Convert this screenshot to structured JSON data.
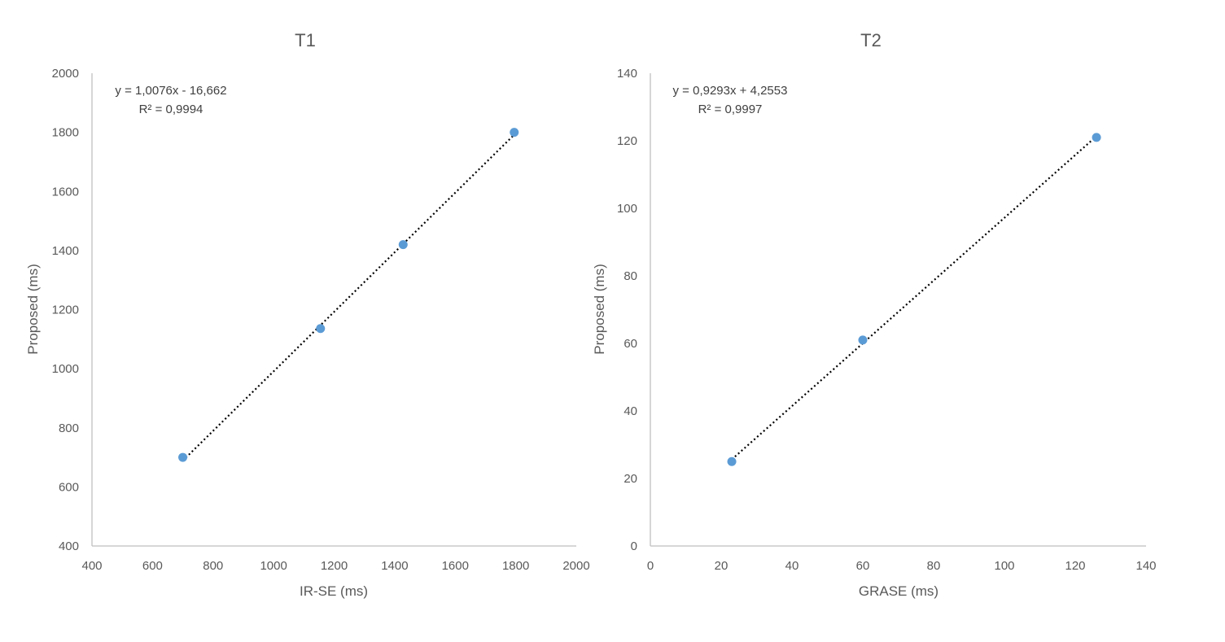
{
  "chart_data": [
    {
      "type": "scatter",
      "title": "T1",
      "xlabel": "IR-SE (ms)",
      "ylabel": "Proposed (ms)",
      "xlim": [
        400,
        2000
      ],
      "ylim": [
        400,
        2000
      ],
      "xticks": [
        400,
        600,
        800,
        1000,
        1200,
        1400,
        1600,
        1800,
        2000
      ],
      "yticks": [
        400,
        600,
        800,
        1000,
        1200,
        1400,
        1600,
        1800,
        2000
      ],
      "tick_labels_x": [
        "400",
        "600",
        "800",
        "1000",
        "1200",
        "1400",
        "1600",
        "1800",
        "2000"
      ],
      "tick_labels_y": [
        "400",
        "600",
        "800",
        "1000",
        "1200",
        "1400",
        "1600",
        "1800",
        "2000"
      ],
      "grid": false,
      "point_color": "#5b9bd5",
      "trendline": {
        "type": "linear",
        "style": "dotted",
        "color": "#000000",
        "slope": 1.0076,
        "intercept": -16.662,
        "equation": "y = 1,0076x - 16,662",
        "r_squared": "R² = 0,9994"
      },
      "points": [
        {
          "x": 700,
          "y": 700
        },
        {
          "x": 1155,
          "y": 1136
        },
        {
          "x": 1428,
          "y": 1420
        },
        {
          "x": 1795,
          "y": 1800
        }
      ]
    },
    {
      "type": "scatter",
      "title": "T2",
      "xlabel": "GRASE (ms)",
      "ylabel": "Proposed (ms)",
      "xlim": [
        0,
        140
      ],
      "ylim": [
        0,
        140
      ],
      "xticks": [
        0,
        20,
        40,
        60,
        80,
        100,
        120,
        140
      ],
      "yticks": [
        0,
        20,
        40,
        60,
        80,
        100,
        120,
        140
      ],
      "tick_labels_x": [
        "0",
        "20",
        "40",
        "60",
        "80",
        "100",
        "120",
        "140"
      ],
      "tick_labels_y": [
        "0",
        "20",
        "40",
        "60",
        "80",
        "100",
        "120",
        "140"
      ],
      "grid": false,
      "point_color": "#5b9bd5",
      "trendline": {
        "type": "linear",
        "style": "dotted",
        "color": "#000000",
        "slope": 0.9293,
        "intercept": 4.2553,
        "equation": "y = 0,9293x + 4,2553",
        "r_squared": "R² = 0,9997"
      },
      "points": [
        {
          "x": 23,
          "y": 25
        },
        {
          "x": 60,
          "y": 61
        },
        {
          "x": 126,
          "y": 121
        }
      ]
    }
  ]
}
